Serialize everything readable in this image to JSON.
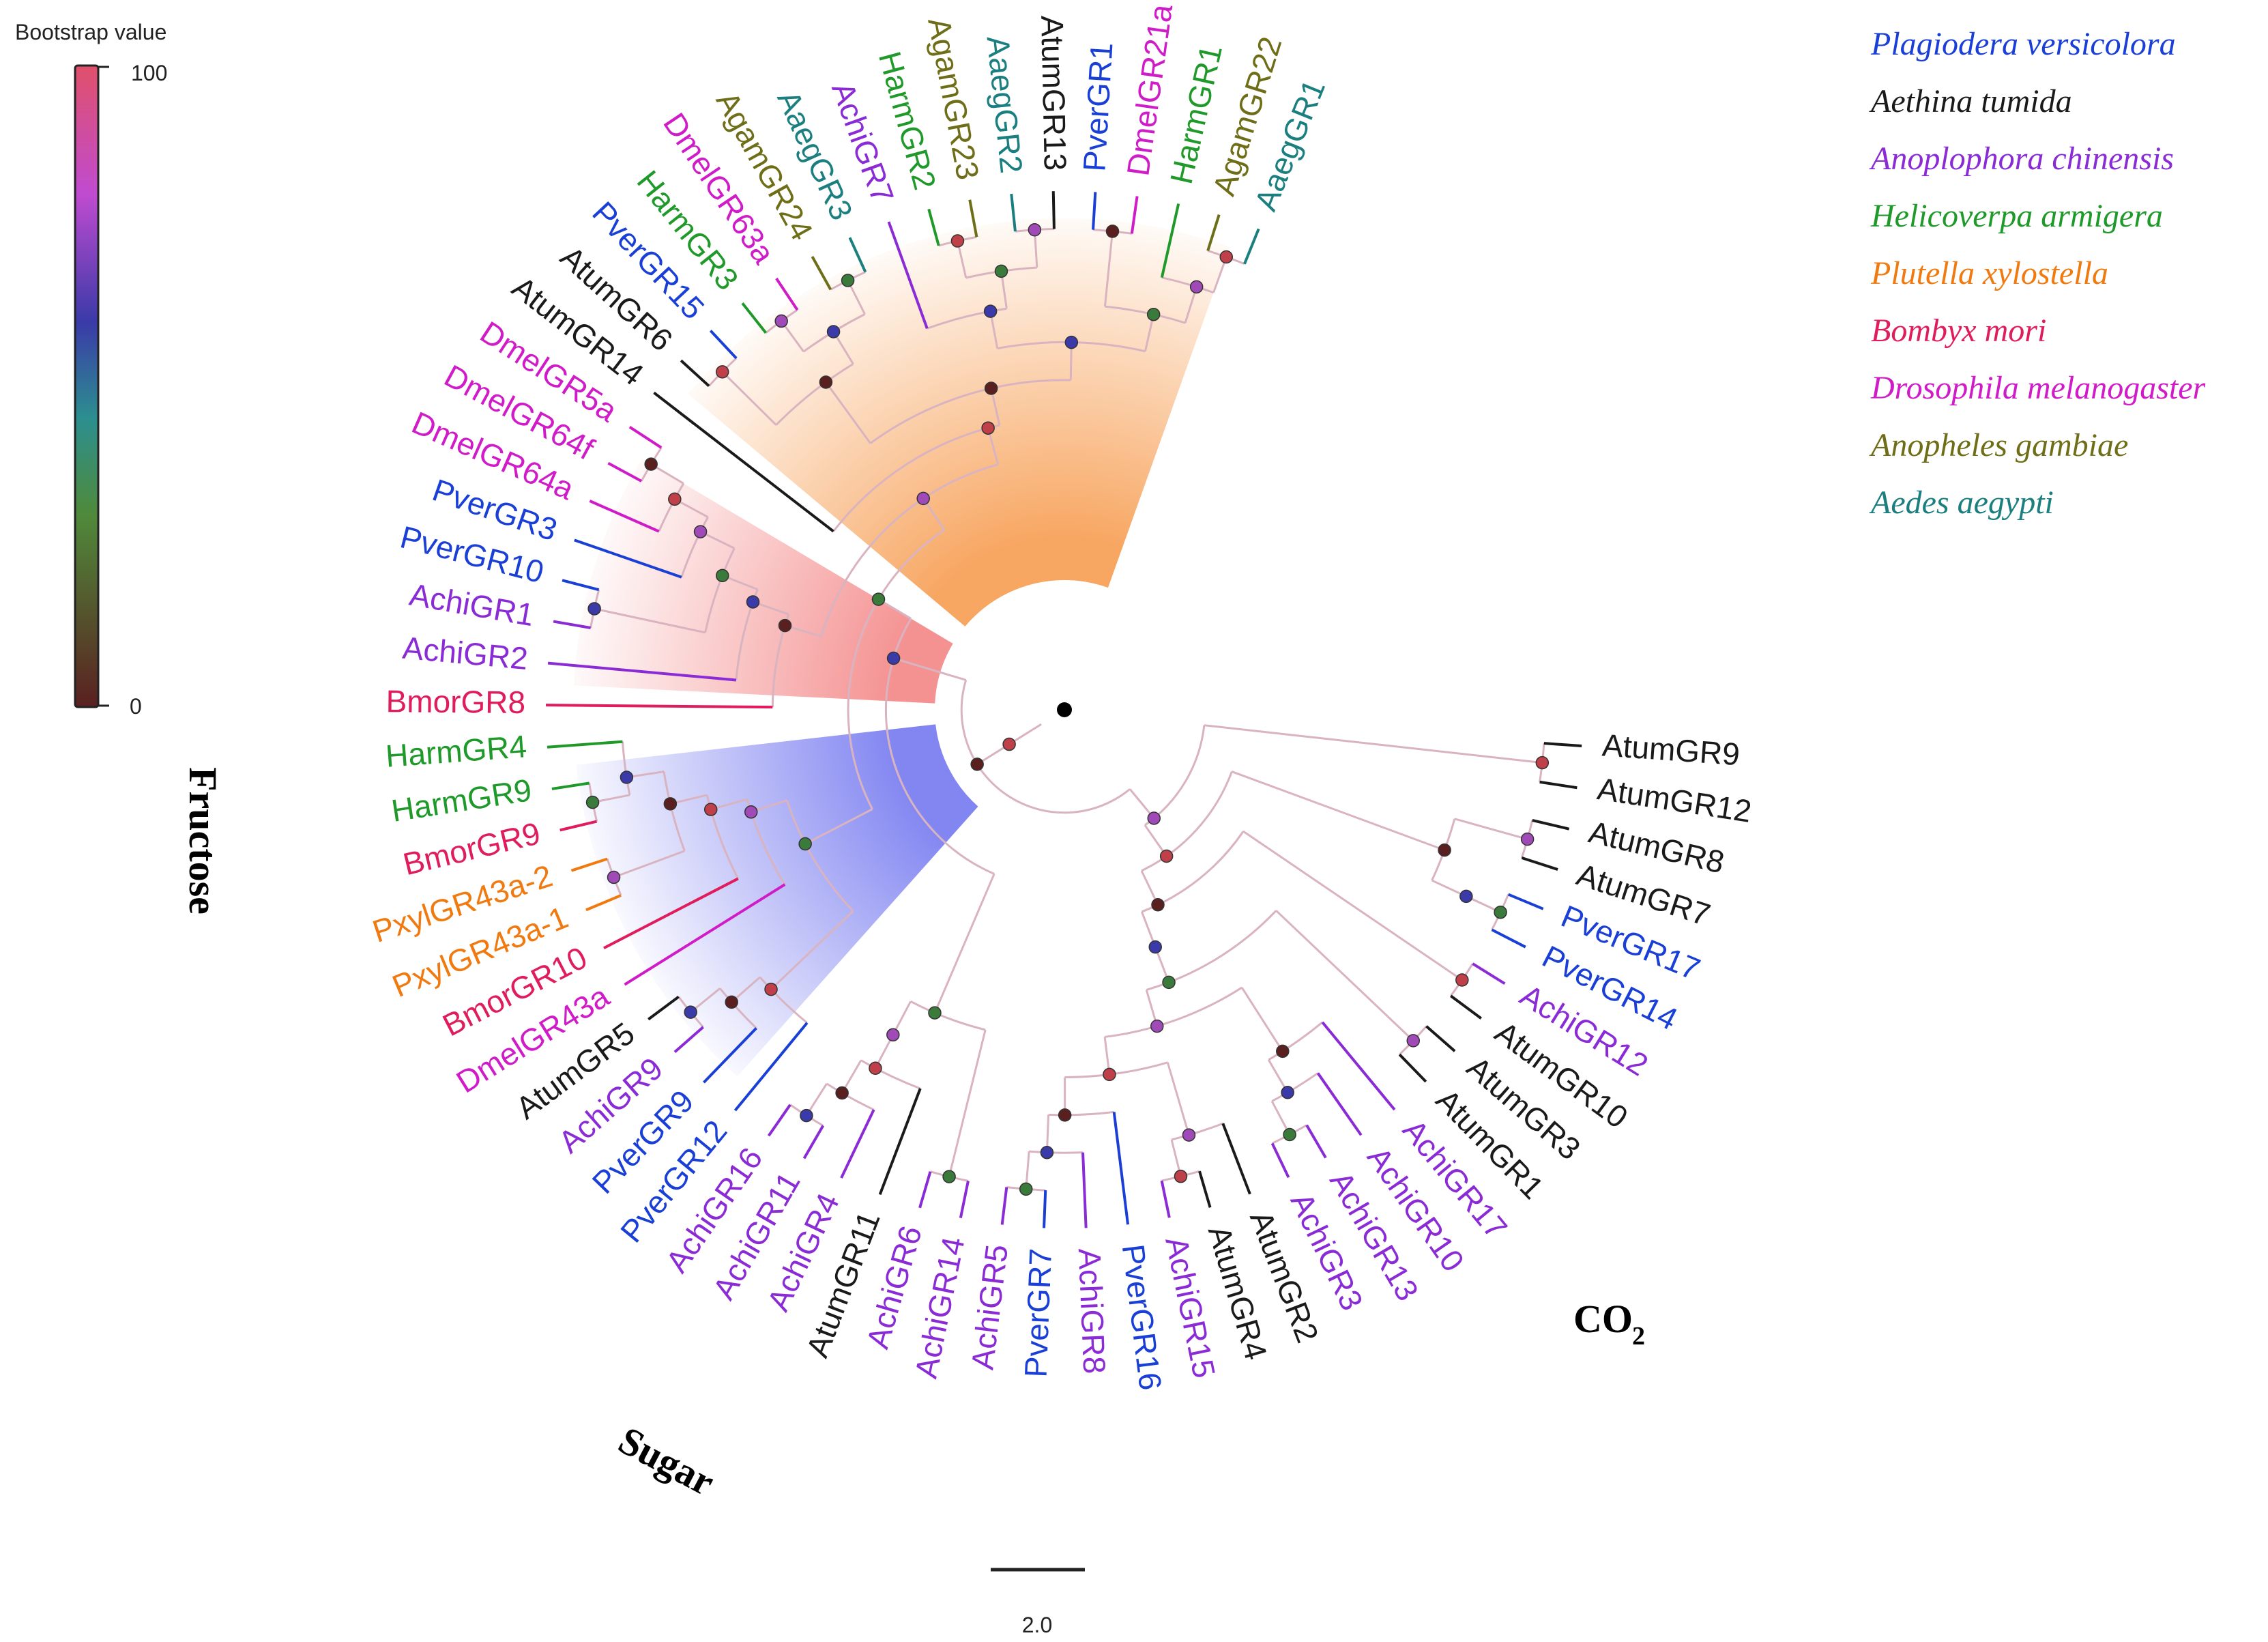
{
  "figure": {
    "bootstrap_title": "Bootstrap value",
    "bootstrap_max": "100",
    "bootstrap_min": "0",
    "scale_label": "2.0",
    "scale_value": 2.0,
    "group_labels": {
      "fructose": "Fructose",
      "sugar": "Sugar",
      "co2": "CO",
      "co2_sub": "2"
    }
  },
  "colors": {
    "background": "#ffffff",
    "fructose_fill": "#7b7ff0",
    "sugar_fill": "#f48c8c",
    "co2_fill": "#f7a25a",
    "bootstrap_gradient": [
      "#5a2020",
      "#4f8a3a",
      "#2c8f8f",
      "#3a3aa8",
      "#c04bd0",
      "#e0506a"
    ]
  },
  "species": [
    {
      "name": "Plagiodera versicolora",
      "prefix": "Pver",
      "color": "#1a3fd6"
    },
    {
      "name": "Aethina tumida",
      "prefix": "Atum",
      "color": "#1a1a1a"
    },
    {
      "name": "Anoplophora chinensis",
      "prefix": "Achi",
      "color": "#8a2bd6"
    },
    {
      "name": "Helicoverpa armigera",
      "prefix": "Harm",
      "color": "#1f9a2a"
    },
    {
      "name": "Plutella xylostella",
      "prefix": "Pxyl",
      "color": "#f07a10"
    },
    {
      "name": "Bombyx mori",
      "prefix": "Bmor",
      "color": "#e01d5c"
    },
    {
      "name": "Drosophila melanogaster",
      "prefix": "Dmel",
      "color": "#d01bc8"
    },
    {
      "name": "Anopheles gambiae",
      "prefix": "Agam",
      "color": "#6e6e18"
    },
    {
      "name": "Aedes aegypti",
      "prefix": "Aaeg",
      "color": "#1b7f7f"
    }
  ],
  "leaves": [
    "AtumGR9",
    "AtumGR12",
    "AtumGR8",
    "AtumGR7",
    "PverGR17",
    "PverGR14",
    "AchiGR12",
    "AtumGR10",
    "AtumGR3",
    "AtumGR1",
    "AchiGR17",
    "AchiGR10",
    "AchiGR13",
    "AchiGR3",
    "AtumGR2",
    "AtumGR4",
    "AchiGR15",
    "PverGR16",
    "AchiGR8",
    "PverGR7",
    "AchiGR5",
    "AchiGR14",
    "AchiGR6",
    "AtumGR11",
    "AchiGR4",
    "AchiGR11",
    "AchiGR16",
    "PverGR12",
    "PverGR9",
    "AchiGR9",
    "AtumGR5",
    "DmelGR43a",
    "BmorGR10",
    "PxylGR43a-1",
    "PxylGR43a-2",
    "BmorGR9",
    "HarmGR9",
    "HarmGR4",
    "BmorGR8",
    "AchiGR2",
    "AchiGR1",
    "PverGR10",
    "PverGR3",
    "DmelGR64a",
    "DmelGR64f",
    "DmelGR5a",
    "AtumGR14",
    "AtumGR6",
    "PverGR15",
    "HarmGR3",
    "DmelGR63a",
    "AgamGR24",
    "AaegGR3",
    "AchiGR7",
    "HarmGR2",
    "AgamGR23",
    "AaegGR2",
    "AtumGR13",
    "PverGR1",
    "DmelGR21a",
    "HarmGR1",
    "AgamGR22",
    "AaegGR1"
  ],
  "tree": [
    [
      [
        [
          [
            "AtumGR9",
            "AtumGR12"
          ],
          [
            [
              [
                "AtumGR8",
                "AtumGR7"
              ],
              [
                [
                  "PverGR17",
                  "PverGR14"
                ]
              ]
            ],
            [
              [
                "AchiGR12",
                "AtumGR10"
              ],
              [
                [
                  [
                    "AtumGR3",
                    "AtumGR1"
                  ],
                  [
                    [
                      "AchiGR17",
                      [
                        "AchiGR10",
                        [
                          "AchiGR13",
                          "AchiGR3"
                        ]
                      ]
                    ],
                    [
                      [
                        "AtumGR2",
                        [
                          "AtumGR4",
                          "AchiGR15"
                        ]
                      ],
                      [
                        "PverGR16",
                        [
                          "AchiGR8",
                          [
                            "PverGR7",
                            "AchiGR5"
                          ]
                        ]
                      ]
                    ]
                  ]
                ]
              ]
            ]
          ]
        ],
        [
          [
            [
              "AchiGR14",
              "AchiGR6"
            ],
            [
              [
                "AtumGR11",
                [
                  "AchiGR4",
                  [
                    "AchiGR11",
                    "AchiGR16"
                  ]
                ]
              ]
            ]
          ],
          [
            [
              [
                "PverGR12",
                [
                  "PverGR9",
                  [
                    "AchiGR9",
                    "AtumGR5"
                  ]
                ]
              ],
              [
                "DmelGR43a",
                [
                  "BmorGR10",
                  [
                    [
                      "PxylGR43a-1",
                      "PxylGR43a-2"
                    ],
                    [
                      [
                        "BmorGR9",
                        "HarmGR9"
                      ],
                      "HarmGR4"
                    ]
                  ]
                ]
              ]
            ],
            [
              [
                "BmorGR8",
                [
                  "AchiGR2",
                  [
                    [
                      "AchiGR1",
                      "PverGR10"
                    ],
                    [
                      "PverGR3",
                      [
                        "DmelGR64a",
                        [
                          "DmelGR64f",
                          "DmelGR5a"
                        ]
                      ]
                    ]
                  ]
                ]
              ],
              [
                "AtumGR14",
                [
                  [
                    [
                      "AtumGR6",
                      "PverGR15"
                    ],
                    [
                      [
                        "HarmGR3",
                        "DmelGR63a"
                      ],
                      [
                        "AgamGR24",
                        "AaegGR3"
                      ]
                    ]
                  ],
                  [
                    [
                      "AchiGR7",
                      [
                        [
                          "HarmGR2",
                          "AgamGR23"
                        ],
                        [
                          "AaegGR2",
                          "AtumGR13"
                        ]
                      ]
                    ],
                    [
                      [
                        "PverGR1",
                        "DmelGR21a"
                      ],
                      [
                        "HarmGR1",
                        [
                          "AgamGR22",
                          "AaegGR1"
                        ]
                      ]
                    ]
                  ]
                ]
              ]
            ]
          ]
        ]
      ]
    ]
  ],
  "clades": [
    {
      "key": "fructose",
      "from": "PverGR12",
      "to": "HarmGR4"
    },
    {
      "key": "sugar",
      "from": "BmorGR8",
      "to": "DmelGR5a"
    },
    {
      "key": "co2",
      "from": "AtumGR14",
      "to": "AaegGR1"
    }
  ]
}
